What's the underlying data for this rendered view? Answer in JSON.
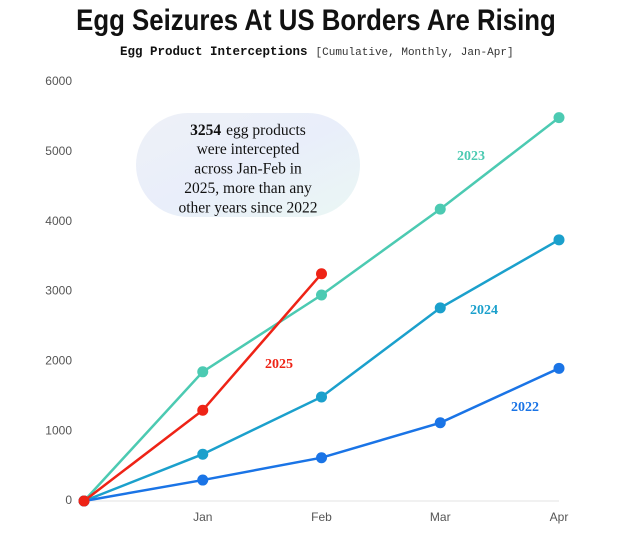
{
  "chart_data": {
    "type": "line",
    "title": "Egg Seizures At US Borders Are Rising",
    "subtitle_bold": "Egg Product Interceptions",
    "subtitle": "[Cumulative, Monthly, Jan-Apr]",
    "categories": [
      null,
      "Jan",
      "Feb",
      "Mar",
      "Apr"
    ],
    "series": [
      {
        "name": "2023",
        "color": "#4ccab2",
        "values": [
          0,
          1850,
          2950,
          4180,
          5490
        ]
      },
      {
        "name": "2024",
        "color": "#1ba0cc",
        "values": [
          0,
          670,
          1490,
          2765,
          3740
        ]
      },
      {
        "name": "2022",
        "color": "#1a74e6",
        "values": [
          0,
          300,
          620,
          1120,
          1900
        ]
      },
      {
        "name": "2025",
        "color": "#ee2316",
        "values": [
          0,
          1300,
          3254,
          null,
          null
        ]
      }
    ],
    "ylim": [
      0,
      6000
    ],
    "yticks": [
      0,
      1000,
      2000,
      3000,
      4000,
      5000,
      6000
    ],
    "annotation_bold": "3254",
    "annotation_lines": [
      "egg products",
      "were intercepted",
      "across Jan-Feb in",
      "2025, more than any",
      "other years since 2022"
    ]
  }
}
